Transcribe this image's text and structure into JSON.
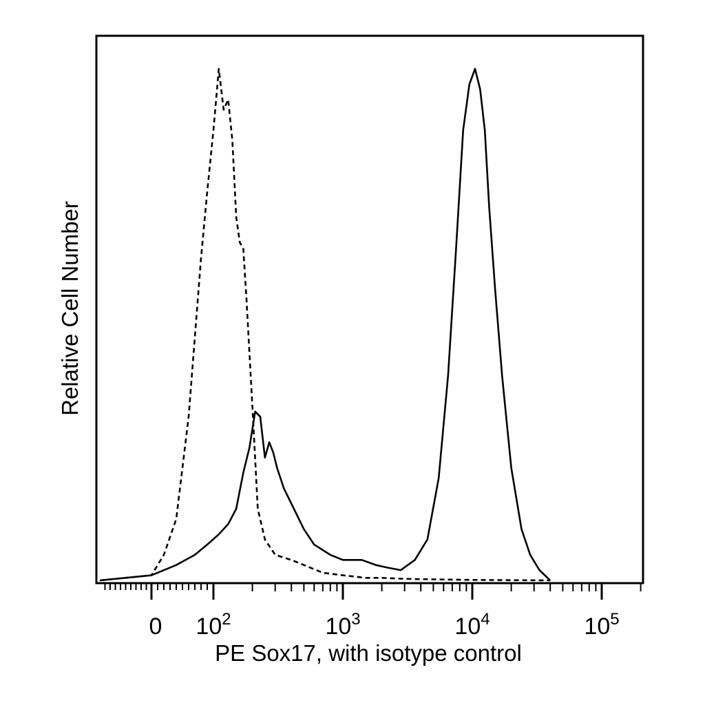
{
  "chart_data": {
    "type": "line",
    "title": "",
    "xlabel": "PE Sox17, with isotype control",
    "ylabel": "Relative Cell Number",
    "x_scale": "biexponential",
    "xlim": [
      -100,
      200000
    ],
    "ylim": [
      0,
      1
    ],
    "x_tick_labels": [
      {
        "value": 0,
        "base": "0",
        "exp": ""
      },
      {
        "value": 100,
        "base": "10",
        "exp": "2"
      },
      {
        "value": 1000,
        "base": "10",
        "exp": "3"
      },
      {
        "value": 10000,
        "base": "10",
        "exp": "4"
      },
      {
        "value": 100000,
        "base": "10",
        "exp": "5"
      }
    ],
    "grid": false,
    "legend": "none",
    "series": [
      {
        "style": "dashed",
        "color": "#000000",
        "x": [
          -100,
          0,
          20,
          40,
          60,
          80,
          90,
          100,
          110,
          120,
          130,
          140,
          150,
          160,
          170,
          180,
          200,
          220,
          250,
          300,
          400,
          500,
          700,
          1000,
          1500,
          2000,
          3000,
          5000,
          10000,
          40000
        ],
        "y": [
          0.0,
          0.01,
          0.05,
          0.12,
          0.32,
          0.63,
          0.76,
          0.88,
          1.0,
          0.92,
          0.94,
          0.86,
          0.71,
          0.66,
          0.65,
          0.55,
          0.34,
          0.14,
          0.08,
          0.05,
          0.04,
          0.03,
          0.015,
          0.01,
          0.005,
          0.005,
          0.003,
          0.002,
          0.001,
          0.0
        ]
      },
      {
        "style": "solid",
        "color": "#000000",
        "x": [
          -100,
          0,
          40,
          70,
          90,
          110,
          130,
          150,
          170,
          190,
          210,
          230,
          250,
          270,
          290,
          310,
          350,
          400,
          500,
          600,
          800,
          1000,
          1400,
          1800,
          2200,
          2800,
          3600,
          4500,
          5500,
          6500,
          7500,
          8500,
          9500,
          10500,
          11500,
          12500,
          13500,
          15000,
          17000,
          20000,
          24000,
          28000,
          33000,
          40000
        ],
        "y": [
          0.0,
          0.01,
          0.03,
          0.05,
          0.07,
          0.09,
          0.11,
          0.14,
          0.21,
          0.26,
          0.33,
          0.32,
          0.24,
          0.27,
          0.25,
          0.22,
          0.18,
          0.15,
          0.1,
          0.07,
          0.05,
          0.04,
          0.04,
          0.03,
          0.025,
          0.02,
          0.04,
          0.08,
          0.2,
          0.4,
          0.65,
          0.88,
          0.97,
          1.0,
          0.96,
          0.88,
          0.73,
          0.57,
          0.4,
          0.22,
          0.1,
          0.05,
          0.02,
          0.0
        ]
      }
    ]
  }
}
